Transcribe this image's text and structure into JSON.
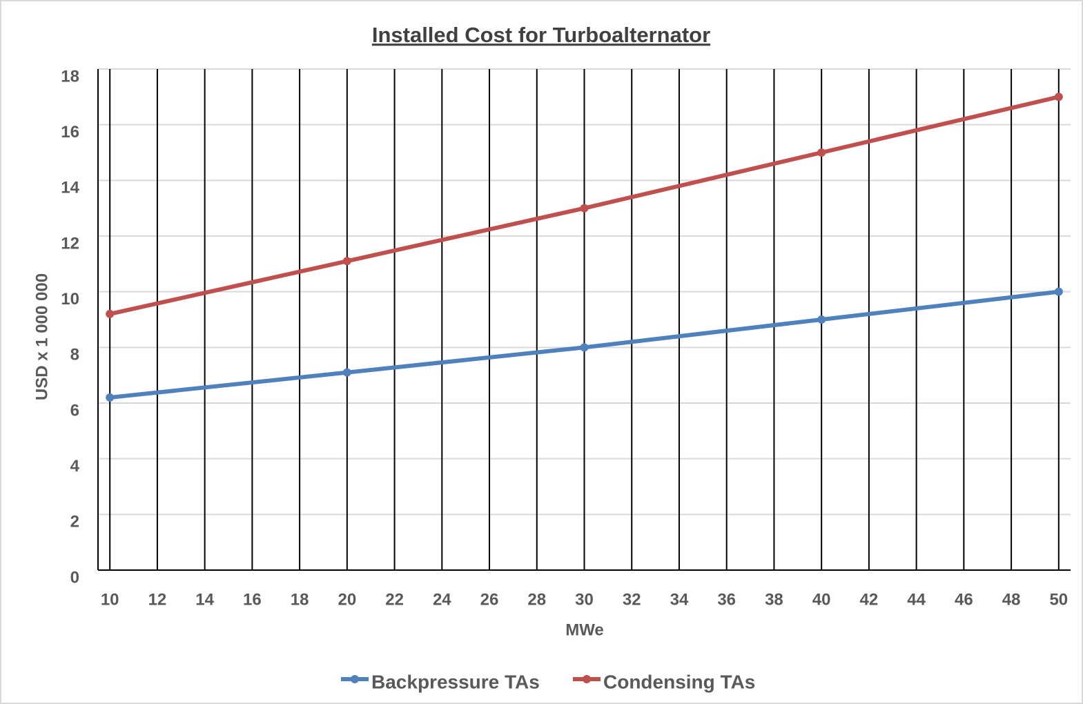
{
  "chart_data": {
    "type": "line",
    "title": "Installed Cost for Turboalternator",
    "x_label": "MWe",
    "y_label": "USD x 1 000 000",
    "x": [
      10,
      20,
      30,
      40,
      50
    ],
    "series": [
      {
        "name": "Backpressure TAs",
        "color": "#4f81bd",
        "values": [
          6.2,
          7.1,
          8.0,
          9.0,
          10.0
        ]
      },
      {
        "name": "Condensing TAs",
        "color": "#c0504d",
        "values": [
          9.2,
          11.1,
          13.0,
          15.0,
          17.0
        ]
      }
    ],
    "xlim": [
      9.5,
      50.5
    ],
    "xticks": [
      10,
      12,
      14,
      16,
      18,
      20,
      22,
      24,
      26,
      28,
      30,
      32,
      34,
      36,
      38,
      40,
      42,
      44,
      46,
      48,
      50
    ],
    "ylim": [
      0,
      18
    ],
    "yticks": [
      0,
      2,
      4,
      6,
      8,
      10,
      12,
      14,
      16,
      18
    ],
    "grid": true,
    "legend": "bottom"
  }
}
